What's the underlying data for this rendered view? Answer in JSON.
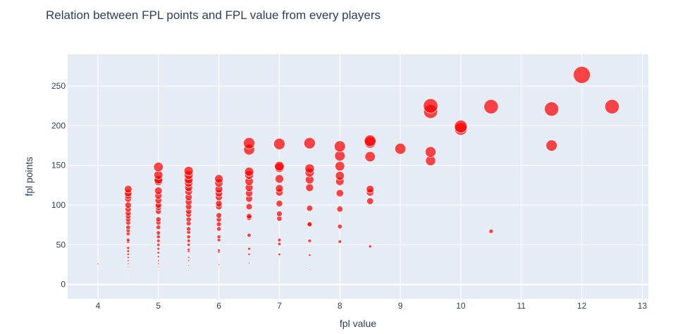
{
  "title": "Relation between FPL points and FPL value from every players",
  "chart_data": {
    "type": "scatter",
    "title": "Relation between FPL points and FPL value from every players",
    "xlabel": "fpl value",
    "ylabel": "fpl points",
    "xlim": [
      3.5,
      13.1
    ],
    "ylim": [
      -18,
      290
    ],
    "x_ticks": [
      4,
      5,
      6,
      7,
      8,
      9,
      10,
      11,
      12,
      13
    ],
    "y_ticks": [
      0,
      50,
      100,
      150,
      200,
      250
    ],
    "grid": true,
    "marker_color": "#ff0000",
    "background": "#e5ecf6",
    "marker_size": "proportional to fpl points",
    "points": [
      {
        "x": 4,
        "y": 26
      },
      {
        "x": 4,
        "y": 14
      },
      {
        "x": 4,
        "y": 8
      },
      {
        "x": 4.5,
        "y": 120
      },
      {
        "x": 4.5,
        "y": 115
      },
      {
        "x": 4.5,
        "y": 112
      },
      {
        "x": 4.5,
        "y": 108
      },
      {
        "x": 4.5,
        "y": 100
      },
      {
        "x": 4.5,
        "y": 95
      },
      {
        "x": 4.5,
        "y": 90
      },
      {
        "x": 4.5,
        "y": 86
      },
      {
        "x": 4.5,
        "y": 82
      },
      {
        "x": 4.5,
        "y": 78
      },
      {
        "x": 4.5,
        "y": 72
      },
      {
        "x": 4.5,
        "y": 68
      },
      {
        "x": 4.5,
        "y": 64
      },
      {
        "x": 4.5,
        "y": 56
      },
      {
        "x": 4.5,
        "y": 54
      },
      {
        "x": 4.5,
        "y": 46
      },
      {
        "x": 4.5,
        "y": 42
      },
      {
        "x": 4.5,
        "y": 38
      },
      {
        "x": 4.5,
        "y": 34
      },
      {
        "x": 4.5,
        "y": 30
      },
      {
        "x": 4.5,
        "y": 26
      },
      {
        "x": 4.5,
        "y": 22
      },
      {
        "x": 4.5,
        "y": 18
      },
      {
        "x": 4.5,
        "y": 14
      },
      {
        "x": 4.5,
        "y": 10
      },
      {
        "x": 4.5,
        "y": 6
      },
      {
        "x": 5,
        "y": 148
      },
      {
        "x": 5,
        "y": 138
      },
      {
        "x": 5,
        "y": 132
      },
      {
        "x": 5,
        "y": 130
      },
      {
        "x": 5,
        "y": 118
      },
      {
        "x": 5,
        "y": 112
      },
      {
        "x": 5,
        "y": 106
      },
      {
        "x": 5,
        "y": 100
      },
      {
        "x": 5,
        "y": 97
      },
      {
        "x": 5,
        "y": 92
      },
      {
        "x": 5,
        "y": 82
      },
      {
        "x": 5,
        "y": 78
      },
      {
        "x": 5,
        "y": 72
      },
      {
        "x": 5,
        "y": 65
      },
      {
        "x": 5,
        "y": 60
      },
      {
        "x": 5,
        "y": 55
      },
      {
        "x": 5,
        "y": 50
      },
      {
        "x": 5,
        "y": 45
      },
      {
        "x": 5,
        "y": 40
      },
      {
        "x": 5,
        "y": 35
      },
      {
        "x": 5,
        "y": 30
      },
      {
        "x": 5,
        "y": 26
      },
      {
        "x": 5,
        "y": 22
      },
      {
        "x": 5,
        "y": 18
      },
      {
        "x": 5,
        "y": 14
      },
      {
        "x": 5,
        "y": 10
      },
      {
        "x": 5.5,
        "y": 143
      },
      {
        "x": 5.5,
        "y": 138
      },
      {
        "x": 5.5,
        "y": 132
      },
      {
        "x": 5.5,
        "y": 128
      },
      {
        "x": 5.5,
        "y": 122
      },
      {
        "x": 5.5,
        "y": 117
      },
      {
        "x": 5.5,
        "y": 110
      },
      {
        "x": 5.5,
        "y": 104
      },
      {
        "x": 5.5,
        "y": 98
      },
      {
        "x": 5.5,
        "y": 92
      },
      {
        "x": 5.5,
        "y": 88
      },
      {
        "x": 5.5,
        "y": 82
      },
      {
        "x": 5.5,
        "y": 77
      },
      {
        "x": 5.5,
        "y": 70
      },
      {
        "x": 5.5,
        "y": 66
      },
      {
        "x": 5.5,
        "y": 60
      },
      {
        "x": 5.5,
        "y": 55
      },
      {
        "x": 5.5,
        "y": 50
      },
      {
        "x": 5.5,
        "y": 44
      },
      {
        "x": 5.5,
        "y": 42
      },
      {
        "x": 5.5,
        "y": 34
      },
      {
        "x": 5.5,
        "y": 30
      },
      {
        "x": 5.5,
        "y": 24
      },
      {
        "x": 5.5,
        "y": 18
      },
      {
        "x": 5.5,
        "y": 14
      },
      {
        "x": 6,
        "y": 133
      },
      {
        "x": 6,
        "y": 128
      },
      {
        "x": 6,
        "y": 120
      },
      {
        "x": 6,
        "y": 115
      },
      {
        "x": 6,
        "y": 110
      },
      {
        "x": 6,
        "y": 102
      },
      {
        "x": 6,
        "y": 98
      },
      {
        "x": 6,
        "y": 87
      },
      {
        "x": 6,
        "y": 82
      },
      {
        "x": 6,
        "y": 76
      },
      {
        "x": 6,
        "y": 70
      },
      {
        "x": 6,
        "y": 60
      },
      {
        "x": 6,
        "y": 56
      },
      {
        "x": 6,
        "y": 43
      },
      {
        "x": 6,
        "y": 41
      },
      {
        "x": 6,
        "y": 25
      },
      {
        "x": 6.5,
        "y": 178
      },
      {
        "x": 6.5,
        "y": 170
      },
      {
        "x": 6.5,
        "y": 142
      },
      {
        "x": 6.5,
        "y": 138
      },
      {
        "x": 6.5,
        "y": 130
      },
      {
        "x": 6.5,
        "y": 122
      },
      {
        "x": 6.5,
        "y": 115
      },
      {
        "x": 6.5,
        "y": 108
      },
      {
        "x": 6.5,
        "y": 98
      },
      {
        "x": 6.5,
        "y": 86
      },
      {
        "x": 6.5,
        "y": 84
      },
      {
        "x": 6.5,
        "y": 62
      },
      {
        "x": 6.5,
        "y": 45
      },
      {
        "x": 6.5,
        "y": 38
      },
      {
        "x": 6.5,
        "y": 27
      },
      {
        "x": 7,
        "y": 177
      },
      {
        "x": 7,
        "y": 149
      },
      {
        "x": 7,
        "y": 147
      },
      {
        "x": 7,
        "y": 133
      },
      {
        "x": 7,
        "y": 121
      },
      {
        "x": 7,
        "y": 116
      },
      {
        "x": 7,
        "y": 102
      },
      {
        "x": 7,
        "y": 89
      },
      {
        "x": 7,
        "y": 83
      },
      {
        "x": 7,
        "y": 56
      },
      {
        "x": 7,
        "y": 51
      },
      {
        "x": 7,
        "y": 38
      },
      {
        "x": 7,
        "y": 37
      },
      {
        "x": 7.5,
        "y": 178
      },
      {
        "x": 7.5,
        "y": 146
      },
      {
        "x": 7.5,
        "y": 141
      },
      {
        "x": 7.5,
        "y": 132
      },
      {
        "x": 7.5,
        "y": 122
      },
      {
        "x": 7.5,
        "y": 96
      },
      {
        "x": 7.5,
        "y": 76
      },
      {
        "x": 7.5,
        "y": 75
      },
      {
        "x": 7.5,
        "y": 55
      },
      {
        "x": 7.5,
        "y": 37
      },
      {
        "x": 7.5,
        "y": 19
      },
      {
        "x": 8,
        "y": 174
      },
      {
        "x": 8,
        "y": 162
      },
      {
        "x": 8,
        "y": 149
      },
      {
        "x": 8,
        "y": 137
      },
      {
        "x": 8,
        "y": 130
      },
      {
        "x": 8,
        "y": 115
      },
      {
        "x": 8,
        "y": 95
      },
      {
        "x": 8,
        "y": 73
      },
      {
        "x": 8,
        "y": 54
      },
      {
        "x": 8.5,
        "y": 181
      },
      {
        "x": 8.5,
        "y": 179
      },
      {
        "x": 8.5,
        "y": 161
      },
      {
        "x": 8.5,
        "y": 120
      },
      {
        "x": 8.5,
        "y": 116
      },
      {
        "x": 8.5,
        "y": 105
      },
      {
        "x": 8.5,
        "y": 48
      },
      {
        "x": 9,
        "y": 171
      },
      {
        "x": 9.5,
        "y": 225
      },
      {
        "x": 9.5,
        "y": 218
      },
      {
        "x": 9.5,
        "y": 167
      },
      {
        "x": 9.5,
        "y": 156
      },
      {
        "x": 10,
        "y": 199
      },
      {
        "x": 10,
        "y": 196
      },
      {
        "x": 10.5,
        "y": 224
      },
      {
        "x": 10.5,
        "y": 67
      },
      {
        "x": 11.5,
        "y": 221
      },
      {
        "x": 11.5,
        "y": 175
      },
      {
        "x": 12,
        "y": 264
      },
      {
        "x": 12.5,
        "y": 224
      }
    ]
  }
}
